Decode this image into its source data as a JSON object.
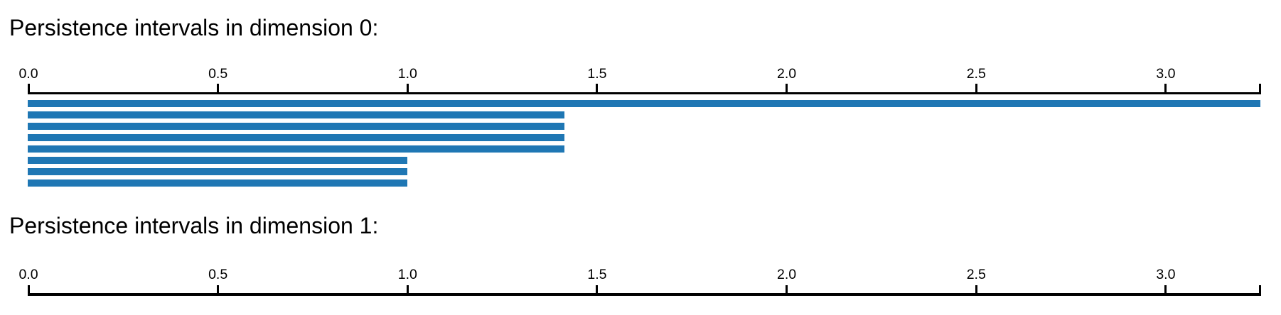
{
  "figure": {
    "kind": "persistence-barcode",
    "background": "#ffffff"
  },
  "colors": {
    "bar_fill": "#1f77b4",
    "axis": "#000000",
    "text": "#000000"
  },
  "chart_data": [
    {
      "type": "bar",
      "subtype": "persistence-barcode",
      "title": "Persistence intervals in dimension 0:",
      "xlabel": "",
      "ylabel": "",
      "xlim": [
        0.0,
        3.25
      ],
      "tick_labels": [
        "0.0",
        "0.5",
        "1.0",
        "1.5",
        "2.0",
        "2.5",
        "3.0"
      ],
      "tick_values": [
        0.0,
        0.5,
        1.0,
        1.5,
        2.0,
        2.5,
        3.0
      ],
      "grid": false,
      "legend": "none",
      "bars": [
        {
          "birth": 0.0,
          "death": "inf",
          "drawn_to": 3.25,
          "infinite": true
        },
        {
          "birth": 0.0,
          "death": 1.414,
          "infinite": false
        },
        {
          "birth": 0.0,
          "death": 1.414,
          "infinite": false
        },
        {
          "birth": 0.0,
          "death": 1.414,
          "infinite": false
        },
        {
          "birth": 0.0,
          "death": 1.414,
          "infinite": false
        },
        {
          "birth": 0.0,
          "death": 1.0,
          "infinite": false
        },
        {
          "birth": 0.0,
          "death": 1.0,
          "infinite": false
        },
        {
          "birth": 0.0,
          "death": 1.0,
          "infinite": false
        }
      ]
    },
    {
      "type": "bar",
      "subtype": "persistence-barcode",
      "title": "Persistence intervals in dimension 1:",
      "xlabel": "",
      "ylabel": "",
      "xlim": [
        0.0,
        3.25
      ],
      "tick_labels": [
        "0.0",
        "0.5",
        "1.0",
        "1.5",
        "2.0",
        "2.5",
        "3.0"
      ],
      "tick_values": [
        0.0,
        0.5,
        1.0,
        1.5,
        2.0,
        2.5,
        3.0
      ],
      "grid": false,
      "legend": "none",
      "bars": []
    }
  ]
}
